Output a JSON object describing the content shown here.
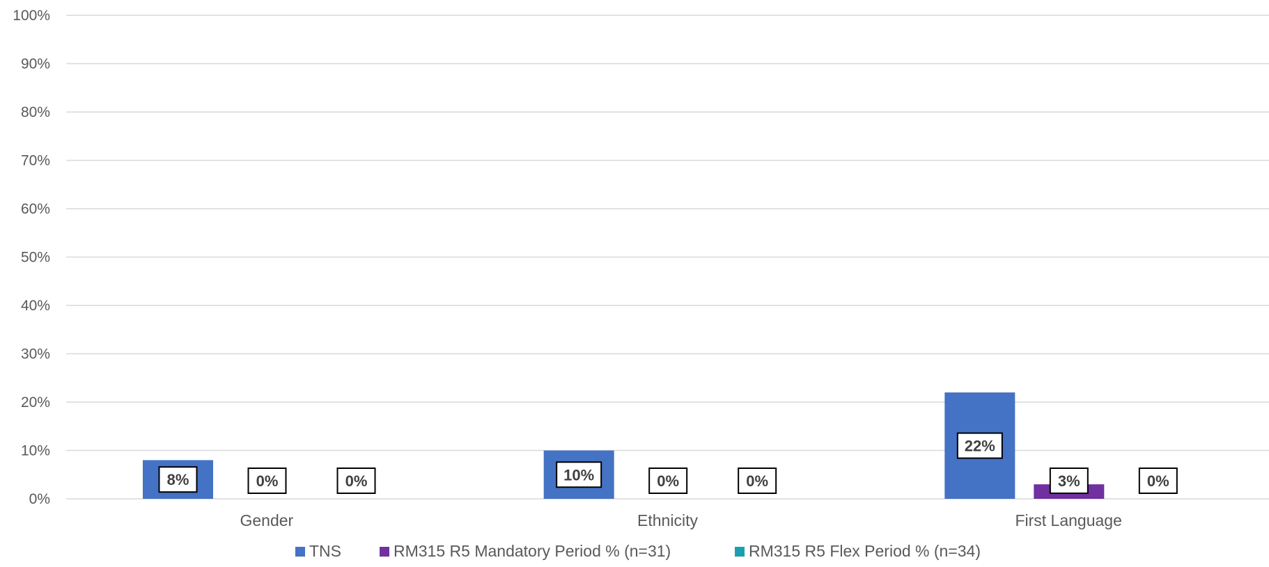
{
  "chart_data": {
    "type": "bar",
    "categories": [
      "Gender",
      "Ethnicity",
      "First Language"
    ],
    "series": [
      {
        "name": "TNS",
        "values": [
          8,
          10,
          22
        ],
        "labels": [
          "8%",
          "10%",
          "22%"
        ],
        "color": "#4472C4"
      },
      {
        "name": "RM315 R5 Mandatory Period % (n=31)",
        "values": [
          0,
          0,
          3
        ],
        "labels": [
          "0%",
          "0%",
          "3%"
        ],
        "color": "#7030A0"
      },
      {
        "name": "RM315 R5 Flex Period % (n=34)",
        "values": [
          0,
          0,
          0
        ],
        "labels": [
          "0%",
          "0%",
          "0%"
        ],
        "color": "#1A9FB0"
      }
    ],
    "ylim": [
      0,
      100
    ],
    "yticks": [
      0,
      10,
      20,
      30,
      40,
      50,
      60,
      70,
      80,
      90,
      100
    ],
    "ytick_labels": [
      "0%",
      "10%",
      "20%",
      "30%",
      "40%",
      "50%",
      "60%",
      "70%",
      "80%",
      "90%",
      "100%"
    ],
    "grid": true,
    "legend_position": "bottom",
    "gridline_color": "#D9D9D9",
    "text_color": "#595959"
  }
}
